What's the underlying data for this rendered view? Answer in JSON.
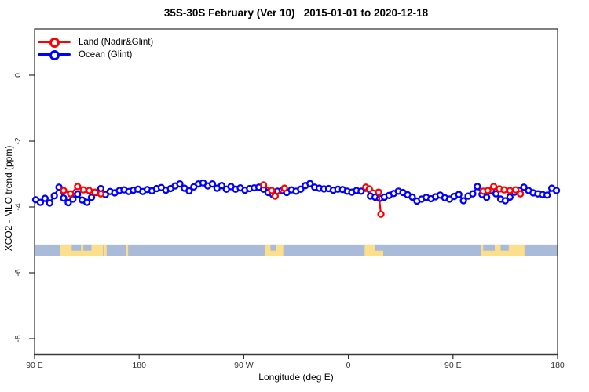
{
  "title": "35S-30S February (Ver 10)   2015-01-01 to 2020-12-18",
  "legend": [
    {
      "label": "Land (Nadir&Glint)",
      "color": "#FF0000"
    },
    {
      "label": "Ocean (Glint)",
      "color": "#0000FF"
    }
  ],
  "colors": {
    "land_series": "#FF0000",
    "ocean_series": "#0000FF",
    "map_ocean": "#A9BBD9",
    "map_land": "#FBDF8B",
    "axis": "#2b2b2b",
    "tick_text": "#333333"
  },
  "chart_data": {
    "type": "line",
    "title": "35S-30S February (Ver 10)   2015-01-01 to 2020-12-18",
    "xlabel": "Longitude (deg E)",
    "ylabel": "XCO2 - MLO trend (ppm)",
    "xlim": [
      90,
      540
    ],
    "ylim": [
      -8.6,
      1.4
    ],
    "grid": false,
    "legend_position": "top-left-inside",
    "x_ticks": [
      {
        "value": 90,
        "label": "90 E"
      },
      {
        "value": 180,
        "label": "180"
      },
      {
        "value": 270,
        "label": "90 W"
      },
      {
        "value": 360,
        "label": "0"
      },
      {
        "value": 450,
        "label": "90 E"
      },
      {
        "value": 540,
        "label": "180"
      }
    ],
    "y_ticks": [
      {
        "value": 0,
        "label": "0"
      },
      {
        "value": -2,
        "label": "-2"
      },
      {
        "value": -4,
        "label": "-4"
      },
      {
        "value": -6,
        "label": "-6"
      },
      {
        "value": -8,
        "label": "-8"
      }
    ],
    "series": [
      {
        "name": "Ocean (Glint)",
        "color": "#0000FF",
        "marker": "open-circle",
        "x": [
          91,
          95,
          99,
          103,
          107,
          111,
          115,
          119,
          123,
          127,
          131,
          135,
          139,
          143,
          147,
          151,
          155,
          159,
          163,
          167,
          171,
          175,
          179,
          183,
          187,
          191,
          195,
          199,
          203,
          207,
          211,
          215,
          219,
          223,
          227,
          231,
          235,
          239,
          243,
          247,
          251,
          255,
          259,
          263,
          267,
          271,
          275,
          279,
          283,
          287,
          291,
          295,
          299,
          303,
          307,
          311,
          315,
          319,
          323,
          327,
          331,
          335,
          339,
          343,
          347,
          351,
          355,
          359,
          363,
          367,
          371,
          375,
          379,
          383,
          387,
          391,
          395,
          399,
          403,
          407,
          411,
          415,
          419,
          423,
          427,
          431,
          435,
          439,
          443,
          447,
          451,
          455,
          459,
          463,
          467,
          471,
          475,
          479,
          483,
          487,
          491,
          495,
          499,
          503,
          507,
          511,
          515,
          519,
          523,
          527,
          531,
          535,
          539
        ],
        "y": [
          -3.78,
          -3.86,
          -3.74,
          -3.88,
          -3.66,
          -3.4,
          -3.73,
          -3.87,
          -3.76,
          -3.61,
          -3.79,
          -3.86,
          -3.71,
          -3.56,
          -3.44,
          -3.62,
          -3.53,
          -3.57,
          -3.5,
          -3.48,
          -3.53,
          -3.49,
          -3.46,
          -3.53,
          -3.47,
          -3.51,
          -3.44,
          -3.41,
          -3.49,
          -3.44,
          -3.36,
          -3.3,
          -3.43,
          -3.51,
          -3.39,
          -3.3,
          -3.27,
          -3.36,
          -3.3,
          -3.43,
          -3.35,
          -3.46,
          -3.38,
          -3.46,
          -3.42,
          -3.49,
          -3.44,
          -3.42,
          -3.4,
          -3.46,
          -3.56,
          -3.62,
          -3.52,
          -3.5,
          -3.56,
          -3.48,
          -3.52,
          -3.46,
          -3.35,
          -3.29,
          -3.4,
          -3.43,
          -3.45,
          -3.44,
          -3.49,
          -3.46,
          -3.47,
          -3.52,
          -3.55,
          -3.5,
          -3.52,
          -3.43,
          -3.67,
          -3.7,
          -3.74,
          -3.7,
          -3.65,
          -3.59,
          -3.52,
          -3.56,
          -3.63,
          -3.7,
          -3.82,
          -3.76,
          -3.71,
          -3.75,
          -3.69,
          -3.64,
          -3.72,
          -3.76,
          -3.68,
          -3.62,
          -3.81,
          -3.67,
          -3.6,
          -3.38,
          -3.62,
          -3.71,
          -3.5,
          -3.6,
          -3.76,
          -3.81,
          -3.7,
          -3.55,
          -3.5,
          -3.4,
          -3.5,
          -3.57,
          -3.6,
          -3.62,
          -3.64,
          -3.43,
          -3.5
        ]
      },
      {
        "name": "Land (Nadir&Glint)",
        "color": "#FF0000",
        "marker": "open-circle",
        "segments": [
          {
            "x": [
              115,
              121,
              127,
              132,
              137,
              142,
              147
            ],
            "y": [
              -3.5,
              -3.6,
              -3.38,
              -3.48,
              -3.5,
              -3.55,
              -3.6
            ]
          },
          {
            "x": [
              287,
              294,
              297,
              305
            ],
            "y": [
              -3.33,
              -3.5,
              -3.67,
              -3.43
            ]
          },
          {
            "x": [
              375,
              378,
              386,
              388
            ],
            "y": [
              -3.4,
              -3.45,
              -3.55,
              -4.22
            ]
          },
          {
            "x": [
              476,
              480,
              485,
              490,
              494,
              499,
              504,
              508
            ],
            "y": [
              -3.52,
              -3.5,
              -3.38,
              -3.45,
              -3.48,
              -3.5,
              -3.48,
              -3.6
            ]
          }
        ]
      }
    ],
    "map_strip": {
      "description": "land/ocean strip for 35S-30S latitude band",
      "value_top": -5.14,
      "value_bottom": -5.48,
      "ocean_color": "#A9BBD9",
      "land_color": "#FBDF8B",
      "land_patches": [
        [
          112,
          149
        ],
        [
          150,
          152
        ],
        [
          168.5,
          170.5
        ],
        [
          288.5,
          304
        ],
        [
          374,
          390
        ],
        [
          474,
          511.5
        ]
      ],
      "ocean_notches": [
        [
          122,
          130
        ],
        [
          132,
          139
        ],
        [
          293,
          298
        ],
        [
          383,
          390
        ],
        [
          476,
          486
        ],
        [
          491,
          498
        ]
      ],
      "notch_depth_fraction": 0.55
    }
  }
}
